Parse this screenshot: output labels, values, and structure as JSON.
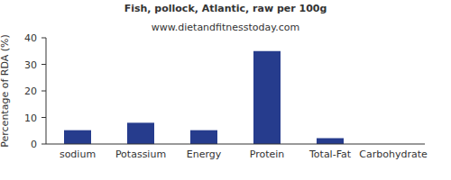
{
  "chart_data": {
    "type": "bar",
    "title": "Fish, pollock, Atlantic, raw per 100g",
    "subtitle": "www.dietandfitnesstoday.com",
    "y_label": "Percentage of RDA (%)",
    "categories": [
      "sodium",
      "Potassium",
      "Energy",
      "Protein",
      "Total-Fat",
      "Carbohydrate"
    ],
    "values": [
      5.2,
      8,
      5.2,
      35,
      2.2,
      0
    ],
    "color": "#263c8d",
    "ylim": [
      0,
      40
    ],
    "yticks": [
      0,
      10,
      20,
      30,
      40
    ],
    "grid": false
  }
}
